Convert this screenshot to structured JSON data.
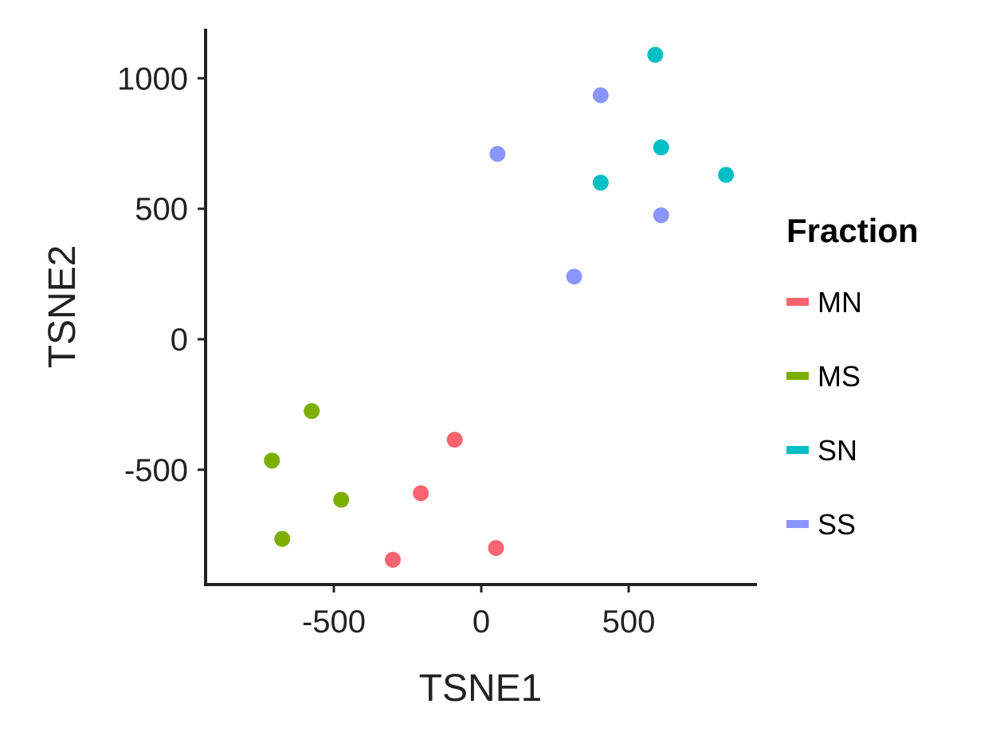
{
  "chart_data": {
    "type": "scatter",
    "title": "",
    "xlabel": "TSNE1",
    "ylabel": "TSNE2",
    "xlim": [
      -935,
      935
    ],
    "ylim": [
      -940,
      1190
    ],
    "x_ticks": [
      -500,
      0,
      500
    ],
    "y_ticks": [
      -500,
      0,
      500,
      1000
    ],
    "grid": false,
    "legend": {
      "title": "Fraction",
      "placement": "right"
    },
    "series": [
      {
        "name": "MN",
        "color": "#F8646F",
        "points": [
          {
            "x": -90,
            "y": -385
          },
          {
            "x": -205,
            "y": -590
          },
          {
            "x": 50,
            "y": -800
          },
          {
            "x": -300,
            "y": -845
          }
        ]
      },
      {
        "name": "MS",
        "color": "#7CAE00",
        "points": [
          {
            "x": -575,
            "y": -275
          },
          {
            "x": -710,
            "y": -465
          },
          {
            "x": -475,
            "y": -615
          },
          {
            "x": -675,
            "y": -765
          }
        ]
      },
      {
        "name": "SN",
        "color": "#00BFC4",
        "points": [
          {
            "x": 590,
            "y": 1090
          },
          {
            "x": 610,
            "y": 735
          },
          {
            "x": 830,
            "y": 630
          },
          {
            "x": 405,
            "y": 600
          }
        ]
      },
      {
        "name": "SS",
        "color": "#8A96FF",
        "points": [
          {
            "x": 405,
            "y": 935
          },
          {
            "x": 55,
            "y": 710
          },
          {
            "x": 610,
            "y": 475
          },
          {
            "x": 315,
            "y": 240
          }
        ]
      }
    ]
  }
}
